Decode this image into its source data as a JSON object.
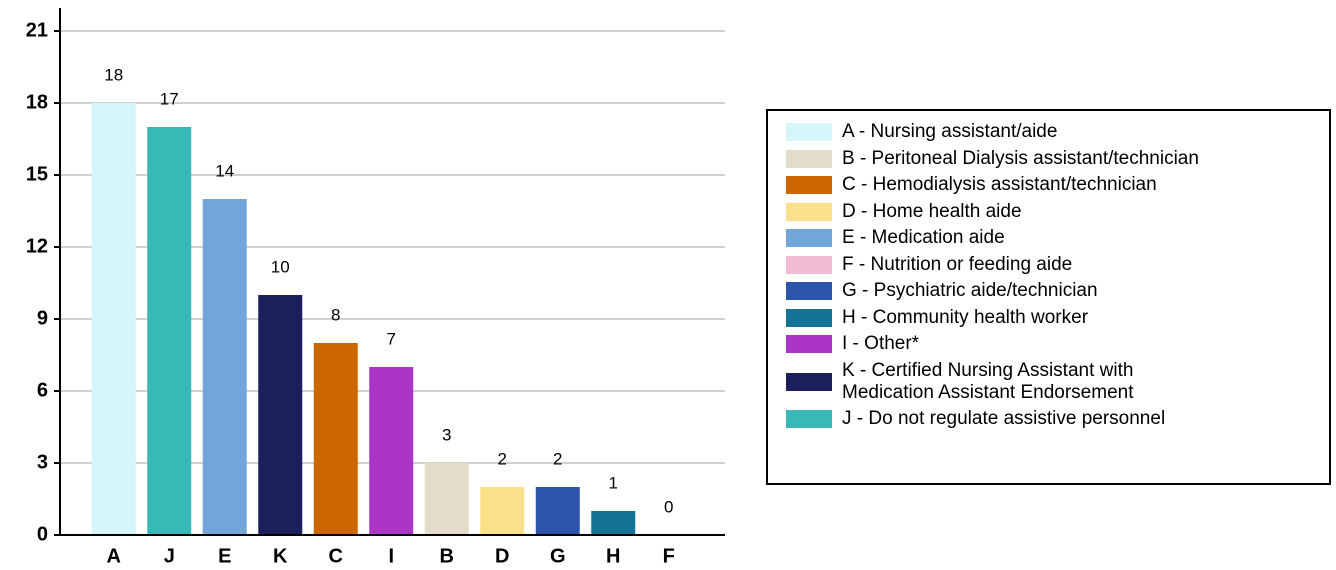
{
  "chart_data": {
    "type": "bar",
    "categories": [
      "A",
      "J",
      "E",
      "K",
      "C",
      "I",
      "B",
      "D",
      "G",
      "H",
      "F"
    ],
    "values": [
      18,
      17,
      14,
      10,
      8,
      7,
      3,
      2,
      2,
      1,
      0
    ],
    "colors": [
      "#d4f6fb",
      "#38b9b8",
      "#72a6da",
      "#1b1f5c",
      "#cc6700",
      "#ab35c5",
      "#e3dccb",
      "#fbe08a",
      "#2a55aa",
      "#137495",
      "#f3bcd4"
    ],
    "ylim": [
      0,
      21
    ],
    "yticks": [
      0,
      3,
      6,
      9,
      12,
      15,
      18,
      21
    ],
    "grid": true,
    "legend": [
      {
        "name": "A - Nursing assistant/aide",
        "color": "#d4f6fb"
      },
      {
        "name": "B - Peritoneal Dialysis assistant/technician",
        "color": "#e3dccb"
      },
      {
        "name": "C - Hemodialysis assistant/technician",
        "color": "#cc6700"
      },
      {
        "name": "D - Home health aide",
        "color": "#fbe08a"
      },
      {
        "name": "E - Medication aide",
        "color": "#72a6da"
      },
      {
        "name": "F - Nutrition or feeding aide",
        "color": "#f3bcd4"
      },
      {
        "name": "G - Psychiatric aide/technician",
        "color": "#2a55aa"
      },
      {
        "name": "H - Community health worker",
        "color": "#137495"
      },
      {
        "name": "I - Other*",
        "color": "#ab35c5"
      },
      {
        "name": "K - Certified Nursing Assistant with\nMedication Assistant Endorsement",
        "color": "#1b1f5c"
      },
      {
        "name": "J - Do not regulate assistive personnel",
        "color": "#38b9b8"
      }
    ]
  }
}
